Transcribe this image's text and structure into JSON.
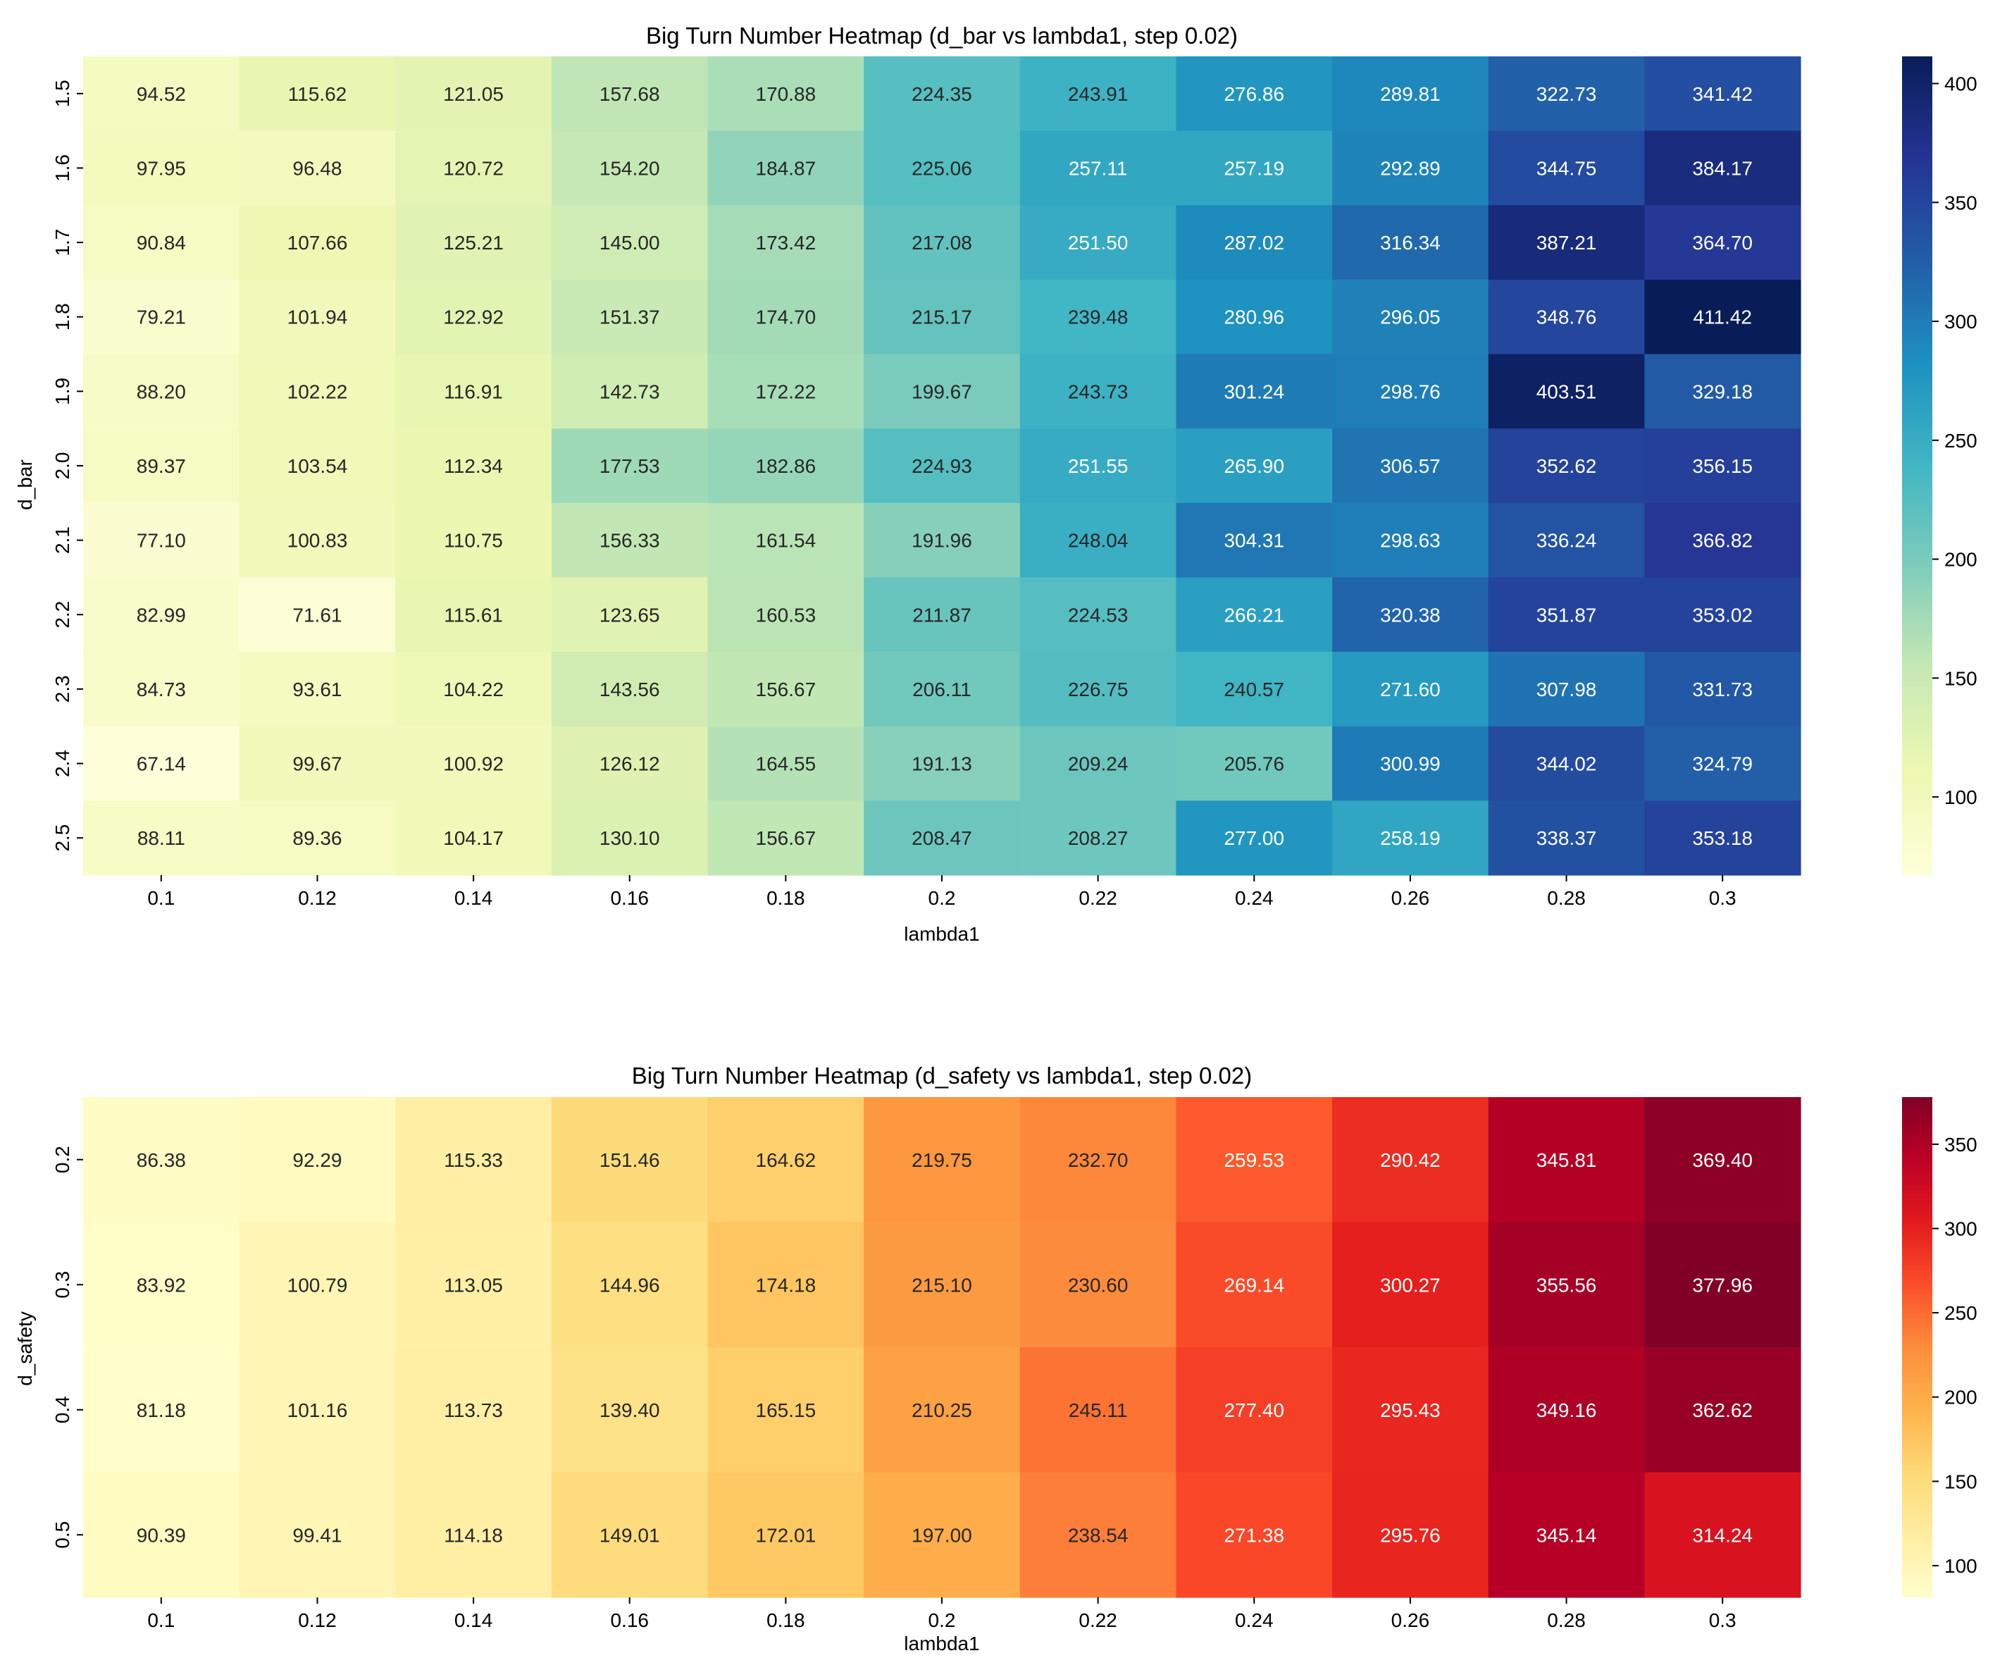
{
  "chart_data": [
    {
      "type": "heatmap",
      "title": "Big Turn Number Heatmap (d_bar vs lambda1, step 0.02)",
      "xlabel": "lambda1",
      "ylabel": "d_bar",
      "colormap": "YlGnBu",
      "x_labels": [
        "0.1",
        "0.12",
        "0.14",
        "0.16",
        "0.18",
        "0.2",
        "0.22",
        "0.24",
        "0.26",
        "0.28",
        "0.3"
      ],
      "y_labels": [
        "1.5",
        "1.6",
        "1.7",
        "1.8",
        "1.9",
        "2.0",
        "2.1",
        "2.2",
        "2.3",
        "2.4",
        "2.5"
      ],
      "values": [
        [
          94.52,
          115.62,
          121.05,
          157.68,
          170.88,
          224.35,
          243.91,
          276.86,
          289.81,
          322.73,
          341.42
        ],
        [
          97.95,
          96.48,
          120.72,
          154.2,
          184.87,
          225.06,
          257.11,
          257.19,
          292.89,
          344.75,
          384.17
        ],
        [
          90.84,
          107.66,
          125.21,
          145.0,
          173.42,
          217.08,
          251.5,
          287.02,
          316.34,
          387.21,
          364.7
        ],
        [
          79.21,
          101.94,
          122.92,
          151.37,
          174.7,
          215.17,
          239.48,
          280.96,
          296.05,
          348.76,
          411.42
        ],
        [
          88.2,
          102.22,
          116.91,
          142.73,
          172.22,
          199.67,
          243.73,
          301.24,
          298.76,
          403.51,
          329.18
        ],
        [
          89.37,
          103.54,
          112.34,
          177.53,
          182.86,
          224.93,
          251.55,
          265.9,
          306.57,
          352.62,
          356.15
        ],
        [
          77.1,
          100.83,
          110.75,
          156.33,
          161.54,
          191.96,
          248.04,
          304.31,
          298.63,
          336.24,
          366.82
        ],
        [
          82.99,
          71.61,
          115.61,
          123.65,
          160.53,
          211.87,
          224.53,
          266.21,
          320.38,
          351.87,
          353.02
        ],
        [
          84.73,
          93.61,
          104.22,
          143.56,
          156.67,
          206.11,
          226.75,
          240.57,
          271.6,
          307.98,
          331.73
        ],
        [
          67.14,
          99.67,
          100.92,
          126.12,
          164.55,
          191.13,
          209.24,
          205.76,
          300.99,
          344.02,
          324.79
        ],
        [
          88.11,
          89.36,
          104.17,
          130.1,
          156.67,
          208.47,
          208.27,
          277.0,
          258.19,
          338.37,
          353.18
        ]
      ],
      "value_labels": [
        [
          "94.52",
          "115.62",
          "121.05",
          "157.68",
          "170.88",
          "224.35",
          "243.91",
          "276.86",
          "289.81",
          "322.73",
          "341.42"
        ],
        [
          "97.95",
          "96.48",
          "120.72",
          "154.20",
          "184.87",
          "225.06",
          "257.11",
          "257.19",
          "292.89",
          "344.75",
          "384.17"
        ],
        [
          "90.84",
          "107.66",
          "125.21",
          "145.00",
          "173.42",
          "217.08",
          "251.50",
          "287.02",
          "316.34",
          "387.21",
          "364.70"
        ],
        [
          "79.21",
          "101.94",
          "122.92",
          "151.37",
          "174.70",
          "215.17",
          "239.48",
          "280.96",
          "296.05",
          "348.76",
          "411.42"
        ],
        [
          "88.20",
          "102.22",
          "116.91",
          "142.73",
          "172.22",
          "199.67",
          "243.73",
          "301.24",
          "298.76",
          "403.51",
          "329.18"
        ],
        [
          "89.37",
          "103.54",
          "112.34",
          "177.53",
          "182.86",
          "224.93",
          "251.55",
          "265.90",
          "306.57",
          "352.62",
          "356.15"
        ],
        [
          "77.10",
          "100.83",
          "110.75",
          "156.33",
          "161.54",
          "191.96",
          "248.04",
          "304.31",
          "298.63",
          "336.24",
          "366.82"
        ],
        [
          "82.99",
          "71.61",
          "115.61",
          "123.65",
          "160.53",
          "211.87",
          "224.53",
          "266.21",
          "320.38",
          "351.87",
          "353.02"
        ],
        [
          "84.73",
          "93.61",
          "104.22",
          "143.56",
          "156.67",
          "206.11",
          "226.75",
          "240.57",
          "271.60",
          "307.98",
          "331.73"
        ],
        [
          "67.14",
          "99.67",
          "100.92",
          "126.12",
          "164.55",
          "191.13",
          "209.24",
          "205.76",
          "300.99",
          "344.02",
          "324.79"
        ],
        [
          "88.11",
          "89.36",
          "104.17",
          "130.10",
          "156.67",
          "208.47",
          "208.27",
          "277.00",
          "258.19",
          "338.37",
          "353.18"
        ]
      ],
      "colorbar": {
        "vmin": 67.14,
        "vmax": 411.42,
        "ticks": [
          100,
          150,
          200,
          250,
          300,
          350,
          400
        ],
        "tick_labels": [
          "100",
          "150",
          "200",
          "250",
          "300",
          "350",
          "400"
        ]
      }
    },
    {
      "type": "heatmap",
      "title": "Big Turn Number Heatmap (d_safety vs lambda1, step 0.02)",
      "xlabel": "lambda1",
      "ylabel": "d_safety",
      "colormap": "YlOrRd",
      "x_labels": [
        "0.1",
        "0.12",
        "0.14",
        "0.16",
        "0.18",
        "0.2",
        "0.22",
        "0.24",
        "0.26",
        "0.28",
        "0.3"
      ],
      "y_labels": [
        "0.2",
        "0.3",
        "0.4",
        "0.5"
      ],
      "values": [
        [
          86.38,
          92.29,
          115.33,
          151.46,
          164.62,
          219.75,
          232.7,
          259.53,
          290.42,
          345.81,
          369.4
        ],
        [
          83.92,
          100.79,
          113.05,
          144.96,
          174.18,
          215.1,
          230.6,
          269.14,
          300.27,
          355.56,
          377.96
        ],
        [
          81.18,
          101.16,
          113.73,
          139.4,
          165.15,
          210.25,
          245.11,
          277.4,
          295.43,
          349.16,
          362.62
        ],
        [
          90.39,
          99.41,
          114.18,
          149.01,
          172.01,
          197.0,
          238.54,
          271.38,
          295.76,
          345.14,
          314.24
        ]
      ],
      "value_labels": [
        [
          "86.38",
          "92.29",
          "115.33",
          "151.46",
          "164.62",
          "219.75",
          "232.70",
          "259.53",
          "290.42",
          "345.81",
          "369.40"
        ],
        [
          "83.92",
          "100.79",
          "113.05",
          "144.96",
          "174.18",
          "215.10",
          "230.60",
          "269.14",
          "300.27",
          "355.56",
          "377.96"
        ],
        [
          "81.18",
          "101.16",
          "113.73",
          "139.40",
          "165.15",
          "210.25",
          "245.11",
          "277.40",
          "295.43",
          "349.16",
          "362.62"
        ],
        [
          "90.39",
          "99.41",
          "114.18",
          "149.01",
          "172.01",
          "197.00",
          "238.54",
          "271.38",
          "295.76",
          "345.14",
          "314.24"
        ]
      ],
      "colorbar": {
        "vmin": 81.18,
        "vmax": 377.96,
        "ticks": [
          100,
          150,
          200,
          250,
          300,
          350
        ],
        "tick_labels": [
          "100",
          "150",
          "200",
          "250",
          "300",
          "350"
        ]
      }
    }
  ],
  "colors": {
    "YlGnBu": [
      "#ffffd9",
      "#edf8b1",
      "#c7e9b4",
      "#7fcdbb",
      "#41b6c4",
      "#1d91c0",
      "#225ea8",
      "#253494",
      "#081d58"
    ],
    "YlOrRd": [
      "#ffffcc",
      "#ffeda0",
      "#fed976",
      "#feb24c",
      "#fd8d3c",
      "#fc4e2a",
      "#e31a1c",
      "#bd0026",
      "#800026"
    ],
    "tick": "#000000"
  }
}
